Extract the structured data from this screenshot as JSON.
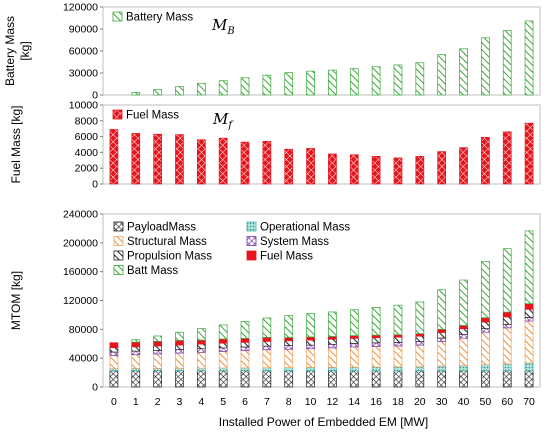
{
  "chart_data": [
    {
      "type": "bar",
      "ylabel_lines": [
        "Battery Mass",
        "[kg]"
      ],
      "ylim": [
        0,
        120000
      ],
      "yticks": [
        "0",
        "30000",
        "60000",
        "90000",
        "120000"
      ],
      "series": [
        {
          "name": "Battery Mass",
          "color": "#3aa83a",
          "pattern": "hatch-green",
          "values": [
            0,
            3500,
            7500,
            11500,
            16000,
            19500,
            23500,
            27000,
            30500,
            32500,
            34000,
            36000,
            38500,
            41000,
            44000,
            55000,
            63000,
            78000,
            88000,
            101000
          ]
        }
      ],
      "symbol": "M",
      "symbol_sub": "B"
    },
    {
      "type": "bar",
      "ylabel_lines": [
        "Fuel Mass [kg]"
      ],
      "ylim": [
        0,
        10000
      ],
      "yticks": [
        "0",
        "2000",
        "4000",
        "6000",
        "8000",
        "10000"
      ],
      "series": [
        {
          "name": "Fuel Mass",
          "color": "#e8141c",
          "pattern": "cross-red",
          "values": [
            6900,
            6400,
            6300,
            6250,
            5600,
            5800,
            5300,
            5400,
            4400,
            4500,
            3800,
            3700,
            3500,
            3300,
            3500,
            4100,
            4600,
            5900,
            6600,
            7700
          ]
        }
      ],
      "symbol": "M",
      "symbol_sub": "f"
    },
    {
      "type": "stacked-bar",
      "ylabel_lines": [
        "MTOM [kg]"
      ],
      "ylim": [
        0,
        240000
      ],
      "yticks": [
        "0",
        "40000",
        "80000",
        "120000",
        "160000",
        "200000",
        "240000"
      ],
      "series": [
        {
          "name": "PayloadMass",
          "color": "#222222",
          "pattern": "cross-black",
          "values": [
            22500,
            22500,
            22500,
            22500,
            22500,
            22500,
            22500,
            22500,
            22500,
            22500,
            22500,
            22500,
            22500,
            22500,
            22500,
            22500,
            22500,
            22500,
            22500,
            22500
          ]
        },
        {
          "name": "Operational Mass",
          "color": "#3ab5a8",
          "pattern": "dot-teal",
          "values": [
            3000,
            3200,
            3300,
            3500,
            3600,
            3800,
            4000,
            4200,
            4400,
            4600,
            4800,
            5000,
            5200,
            5400,
            5600,
            6500,
            7200,
            8500,
            9500,
            11000
          ]
        },
        {
          "name": "Structural Mass",
          "color": "#f0a060",
          "pattern": "hatch-orange",
          "values": [
            18000,
            19000,
            20000,
            21000,
            22000,
            23000,
            24000,
            25000,
            25500,
            26000,
            27000,
            28000,
            28500,
            29000,
            30000,
            34000,
            38000,
            45000,
            50000,
            58000
          ]
        },
        {
          "name": "System Mass",
          "color": "#7a3aa8",
          "pattern": "cross-purple",
          "values": [
            5000,
            5000,
            5000,
            5000,
            5000,
            5000,
            5000,
            5000,
            5000,
            5000,
            5000,
            5000,
            5000,
            5000,
            5000,
            5000,
            5000,
            5000,
            5000,
            5000
          ]
        },
        {
          "name": "Propulsion Mass",
          "color": "#222222",
          "pattern": "hatch-black",
          "values": [
            6000,
            6100,
            6200,
            6300,
            6400,
            6500,
            6600,
            6700,
            6800,
            6900,
            7000,
            7100,
            7200,
            7300,
            7400,
            7800,
            8100,
            9200,
            10300,
            11400
          ]
        },
        {
          "name": "Fuel Mass",
          "color": "#e8141c",
          "pattern": "solid-red",
          "values": [
            6900,
            6400,
            6300,
            6250,
            5600,
            5800,
            5300,
            5400,
            4400,
            4500,
            3800,
            3700,
            3500,
            3300,
            3500,
            4100,
            4600,
            5900,
            6600,
            7700
          ]
        },
        {
          "name": "Batt Mass",
          "color": "#3aa83a",
          "pattern": "hatch-green",
          "values": [
            0,
            3500,
            7500,
            11500,
            16000,
            19500,
            23500,
            27000,
            30500,
            32500,
            34000,
            36000,
            38500,
            41000,
            44000,
            55000,
            63000,
            78000,
            88000,
            101000
          ]
        }
      ],
      "legend_order": [
        0,
        1,
        2,
        3,
        4,
        5,
        6
      ],
      "xlabel": "Installed Power of Embedded EM [MW]",
      "categories": [
        "0",
        "1",
        "2",
        "3",
        "4",
        "5",
        "6",
        "7",
        "8",
        "10",
        "12",
        "14",
        "16",
        "18",
        "20",
        "30",
        "40",
        "50",
        "60",
        "70"
      ]
    }
  ]
}
